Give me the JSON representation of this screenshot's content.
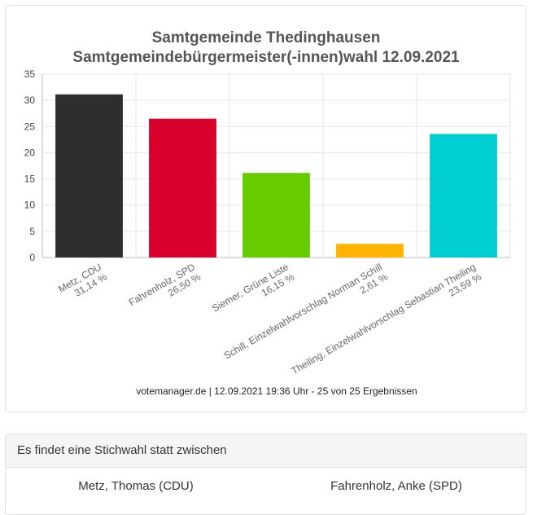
{
  "chart_data": {
    "type": "bar",
    "title": "Samtgemeinde Thedinghausen",
    "subtitle": "Samtgemeindebürgermeister(-innen)wahl 12.09.2021",
    "categories": [
      "Metz, CDU",
      "Fahrenholz, SPD",
      "Siemer, Grüne Liste",
      "Schill, Einzelwahlvorschlag Norman Schill",
      "Theiling, Einzelwahlvorschlag Sebastian Theiling"
    ],
    "value_labels": [
      "31,14 %",
      "26,50 %",
      "16,15 %",
      "2,61 %",
      "23,59 %"
    ],
    "values": [
      31.14,
      26.5,
      16.15,
      2.61,
      23.59
    ],
    "colors": [
      "#302e2c",
      "#d9002c",
      "#66cc00",
      "#ffb400",
      "#00cfd1"
    ],
    "ylim": [
      0,
      35
    ],
    "yticks": [
      0,
      5,
      10,
      15,
      20,
      25,
      30,
      35
    ],
    "grid": true,
    "legend": "none",
    "source": "votemanager.de | 12.09.2021 19:36 Uhr - 25 von 25 Ergebnissen"
  },
  "runoff": {
    "header": "Es findet eine Stichwahl statt zwischen",
    "candidates": [
      "Metz, Thomas (CDU)",
      "Fahrenholz, Anke (SPD)"
    ]
  }
}
